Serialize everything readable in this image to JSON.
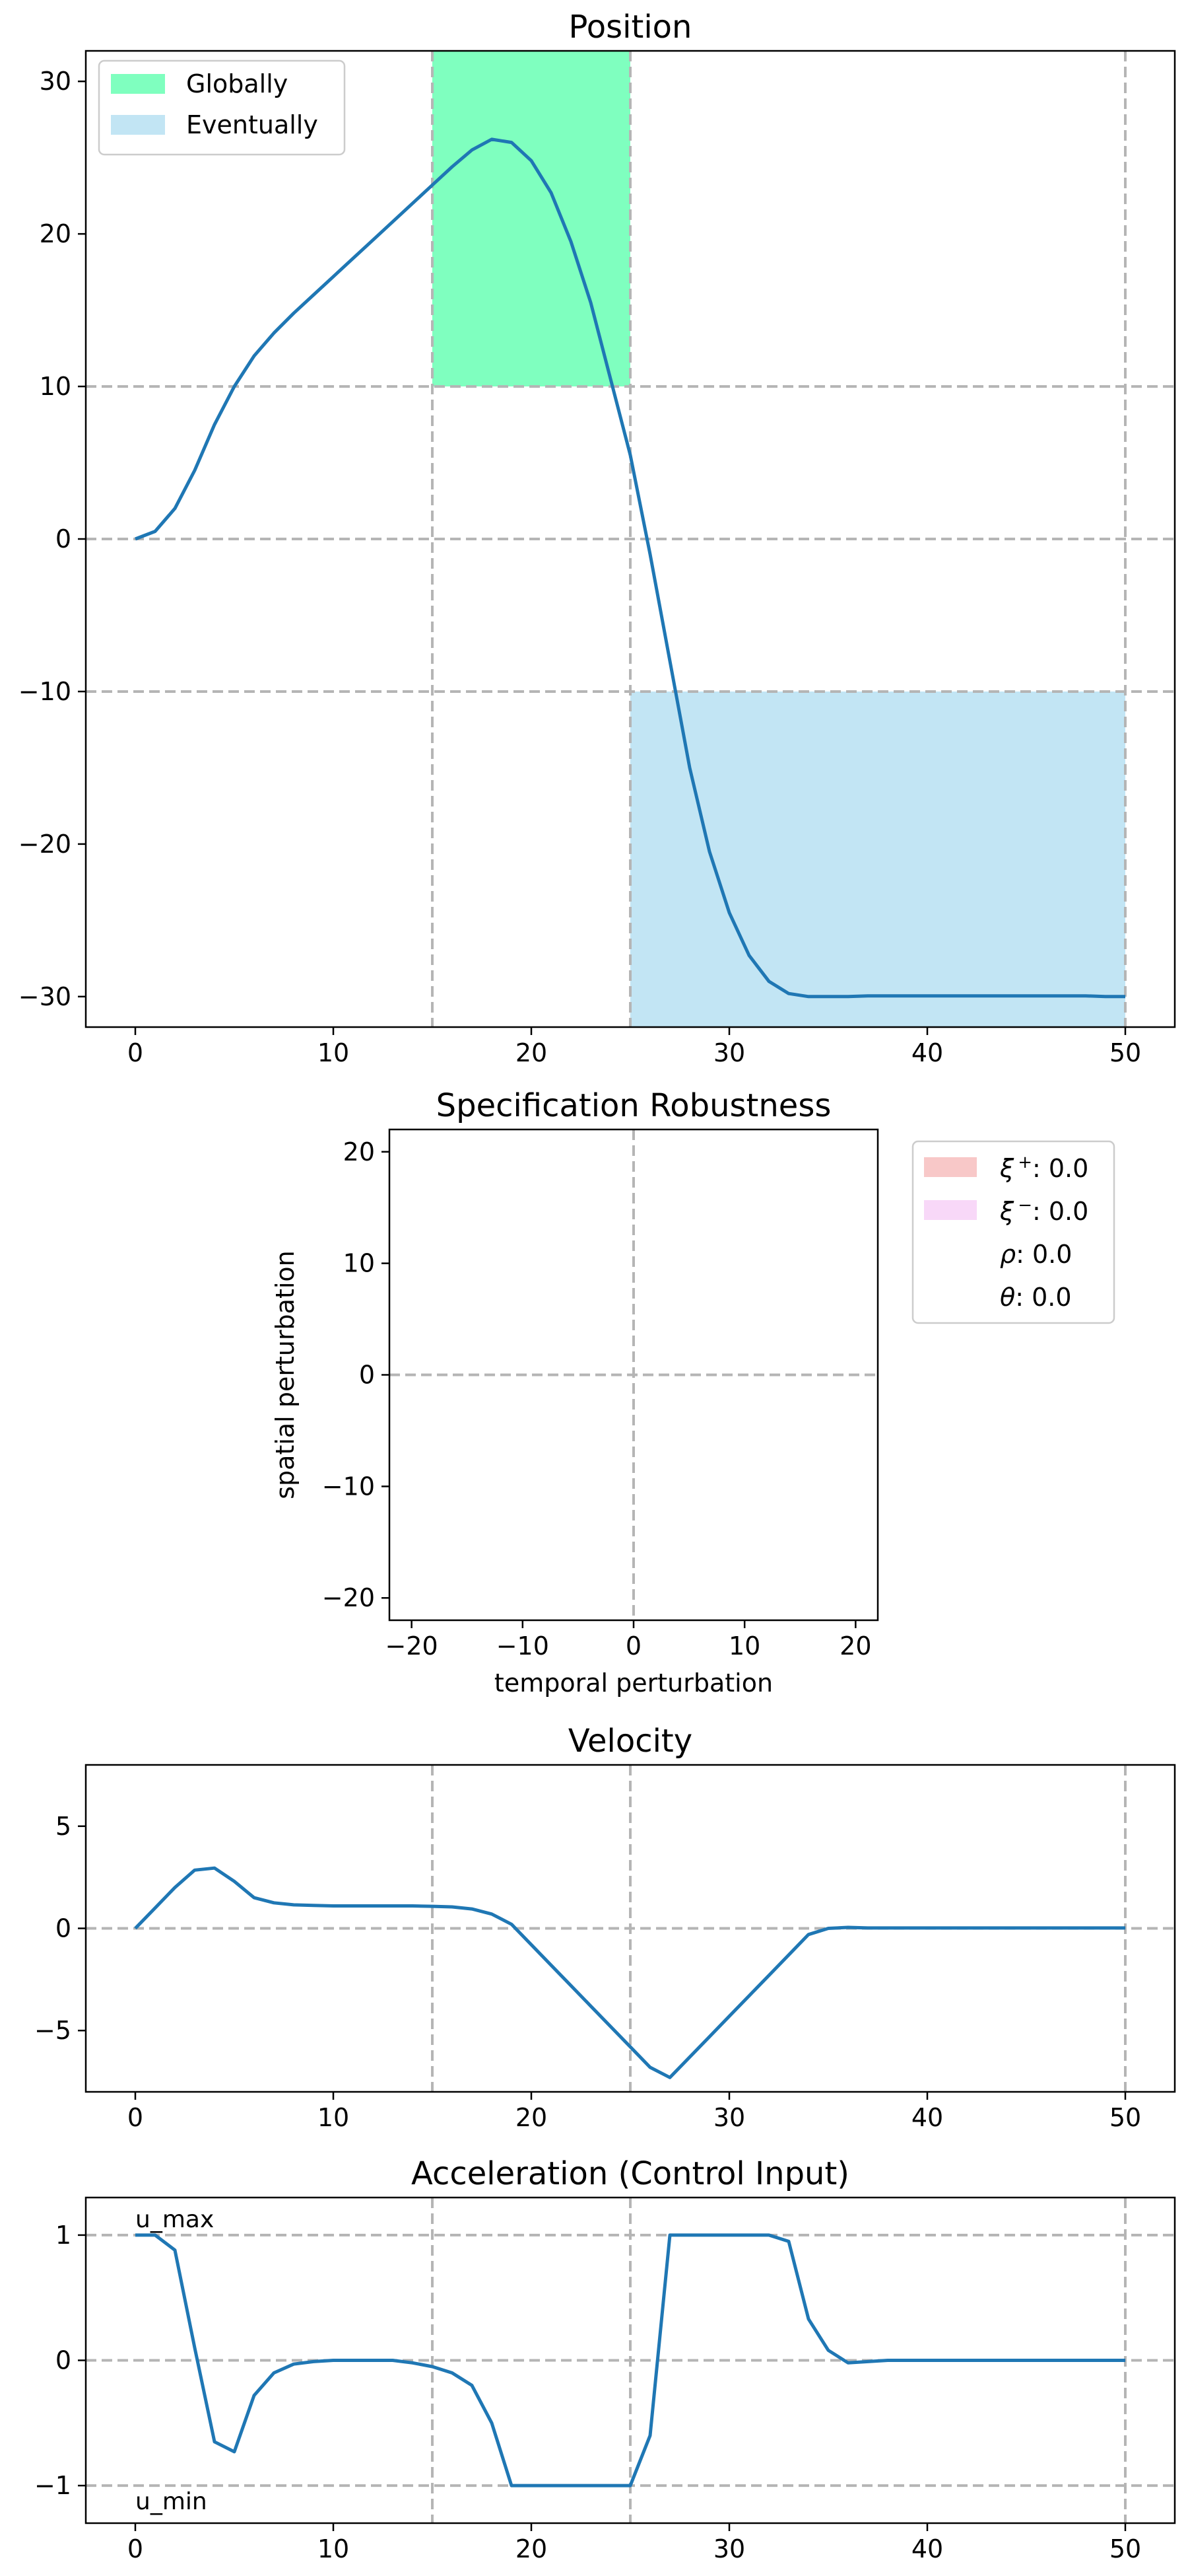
{
  "chart_data": [
    {
      "type": "line",
      "title": "Position",
      "xlabel": "",
      "ylabel": "",
      "xlim": [
        -2.5,
        52.5
      ],
      "ylim": [
        -32,
        32
      ],
      "xticks": [
        0,
        10,
        20,
        30,
        40,
        50
      ],
      "yticks": [
        -30,
        -20,
        -10,
        0,
        10,
        20,
        30
      ],
      "tick_labels_x": [
        "0",
        "10",
        "20",
        "30",
        "40",
        "50"
      ],
      "tick_labels_y": [
        "−30",
        "−20",
        "−10",
        "0",
        "10",
        "20",
        "30"
      ],
      "grid": false,
      "reference_lines": {
        "vertical": [
          15,
          25,
          50
        ],
        "horizontal": [
          10,
          0,
          -10
        ]
      },
      "regions": [
        {
          "label": "Globally",
          "x": [
            15,
            25
          ],
          "y": [
            10,
            32
          ],
          "color": "#7fffbf"
        },
        {
          "label": "Eventually",
          "x": [
            25,
            50
          ],
          "y": [
            -32,
            -10
          ],
          "color": "#c2e5f4"
        }
      ],
      "legend": {
        "placement": "top-left",
        "entries": [
          "Globally",
          "Eventually"
        ]
      },
      "series": [
        {
          "color": "#1f77b4",
          "x": [
            0,
            1,
            2,
            3,
            4,
            5,
            6,
            7,
            8,
            9,
            10,
            11,
            12,
            13,
            14,
            15,
            16,
            17,
            18,
            19,
            20,
            21,
            22,
            23,
            24,
            25,
            26,
            27,
            28,
            29,
            30,
            31,
            32,
            33,
            34,
            35,
            36,
            37,
            38,
            39,
            40,
            41,
            42,
            43,
            44,
            45,
            46,
            47,
            48,
            49,
            50
          ],
          "y": [
            0,
            0.5,
            2,
            4.5,
            7.5,
            10,
            12,
            13.5,
            14.8,
            16,
            17.2,
            18.4,
            19.6,
            20.8,
            22,
            23.2,
            24.4,
            25.5,
            26.2,
            26,
            24.8,
            22.7,
            19.5,
            15.5,
            10.5,
            5.5,
            -1,
            -8,
            -15,
            -20.5,
            -24.5,
            -27.3,
            -29,
            -29.8,
            -30,
            -30,
            -30,
            -29.95,
            -29.95,
            -29.95,
            -29.95,
            -29.95,
            -29.95,
            -29.95,
            -29.95,
            -29.95,
            -29.95,
            -29.95,
            -29.95,
            -30,
            -30
          ]
        }
      ]
    },
    {
      "type": "area",
      "title": "Specification Robustness",
      "xlabel": "temporal perturbation",
      "ylabel": "spatial perturbation",
      "xlim": [
        -22,
        22
      ],
      "ylim": [
        -22,
        22
      ],
      "xticks": [
        -20,
        -10,
        0,
        10,
        20
      ],
      "yticks": [
        -20,
        -10,
        0,
        10,
        20
      ],
      "tick_labels_x": [
        "−20",
        "−10",
        "0",
        "10",
        "20"
      ],
      "tick_labels_y": [
        "−20",
        "−10",
        "0",
        "10",
        "20"
      ],
      "grid": false,
      "reference_lines": {
        "vertical": [
          0
        ],
        "horizontal": [
          0
        ]
      },
      "legend": {
        "placement": "outside-right",
        "entries": [
          {
            "symbol": "ξ",
            "sup": "+",
            "value": ": 0.0",
            "color": "#f8c8c8"
          },
          {
            "symbol": "ξ",
            "sup": "−",
            "value": ": 0.0",
            "color": "#f8d8f8"
          },
          {
            "symbol": "ρ",
            "sup": "",
            "value": ": 0.0",
            "color": ""
          },
          {
            "symbol": "θ",
            "sup": "",
            "value": ": 0.0",
            "color": ""
          }
        ]
      },
      "series": []
    },
    {
      "type": "line",
      "title": "Velocity",
      "xlabel": "",
      "ylabel": "",
      "xlim": [
        -2.5,
        52.5
      ],
      "ylim": [
        -8,
        8
      ],
      "xticks": [
        0,
        10,
        20,
        30,
        40,
        50
      ],
      "yticks": [
        -5,
        0,
        5
      ],
      "tick_labels_x": [
        "0",
        "10",
        "20",
        "30",
        "40",
        "50"
      ],
      "tick_labels_y": [
        "−5",
        "0",
        "5"
      ],
      "grid": false,
      "reference_lines": {
        "vertical": [
          15,
          25,
          50
        ],
        "horizontal": [
          0
        ]
      },
      "series": [
        {
          "color": "#1f77b4",
          "x": [
            0,
            1,
            2,
            3,
            4,
            5,
            6,
            7,
            8,
            9,
            10,
            11,
            12,
            13,
            14,
            15,
            16,
            17,
            18,
            19,
            20,
            21,
            22,
            23,
            24,
            25,
            26,
            27,
            28,
            29,
            30,
            31,
            32,
            33,
            34,
            35,
            36,
            37,
            38,
            39,
            40,
            41,
            42,
            43,
            44,
            45,
            46,
            47,
            48,
            49,
            50
          ],
          "y": [
            0,
            1,
            2,
            2.85,
            2.95,
            2.3,
            1.5,
            1.25,
            1.15,
            1.12,
            1.1,
            1.1,
            1.1,
            1.1,
            1.1,
            1.08,
            1.05,
            0.95,
            0.7,
            0.2,
            -0.8,
            -1.8,
            -2.8,
            -3.8,
            -4.8,
            -5.8,
            -6.8,
            -7.3,
            -6.3,
            -5.3,
            -4.3,
            -3.3,
            -2.3,
            -1.3,
            -0.3,
            0,
            0.05,
            0.02,
            0.02,
            0.02,
            0.02,
            0.02,
            0.02,
            0.02,
            0.02,
            0.02,
            0.02,
            0.02,
            0.02,
            0.02,
            0.02
          ]
        }
      ]
    },
    {
      "type": "line",
      "title": "Acceleration (Control Input)",
      "xlabel": "",
      "ylabel": "",
      "xlim": [
        -2.5,
        52.5
      ],
      "ylim": [
        -1.3,
        1.3
      ],
      "xticks": [
        0,
        10,
        20,
        30,
        40,
        50
      ],
      "yticks": [
        -1,
        0,
        1
      ],
      "tick_labels_x": [
        "0",
        "10",
        "20",
        "30",
        "40",
        "50"
      ],
      "tick_labels_y": [
        "−1",
        "0",
        "1"
      ],
      "grid": false,
      "reference_lines": {
        "vertical": [
          15,
          25,
          50
        ],
        "horizontal": [
          1,
          0,
          -1
        ]
      },
      "annotations": [
        {
          "text": "u_max",
          "x": 0,
          "y": 1
        },
        {
          "text": "u_min",
          "x": 0,
          "y": -1
        }
      ],
      "series": [
        {
          "color": "#1f77b4",
          "x": [
            0,
            1,
            2,
            3,
            4,
            5,
            6,
            7,
            8,
            9,
            10,
            11,
            12,
            13,
            14,
            15,
            16,
            17,
            18,
            19,
            20,
            21,
            22,
            23,
            24,
            25,
            26,
            27,
            28,
            29,
            30,
            31,
            32,
            33,
            34,
            35,
            36,
            37,
            38,
            39,
            40,
            41,
            42,
            43,
            44,
            45,
            46,
            47,
            48,
            49,
            50
          ],
          "y": [
            1,
            1,
            0.88,
            0.1,
            -0.65,
            -0.73,
            -0.28,
            -0.1,
            -0.03,
            -0.01,
            0,
            0,
            0,
            0,
            -0.02,
            -0.05,
            -0.1,
            -0.2,
            -0.5,
            -1,
            -1,
            -1,
            -1,
            -1,
            -1,
            -1,
            -0.6,
            1,
            1,
            1,
            1,
            1,
            1,
            0.95,
            0.33,
            0.08,
            -0.02,
            -0.01,
            0,
            0,
            0,
            0,
            0,
            0,
            0,
            0,
            0,
            0,
            0,
            0,
            0
          ]
        }
      ]
    }
  ]
}
